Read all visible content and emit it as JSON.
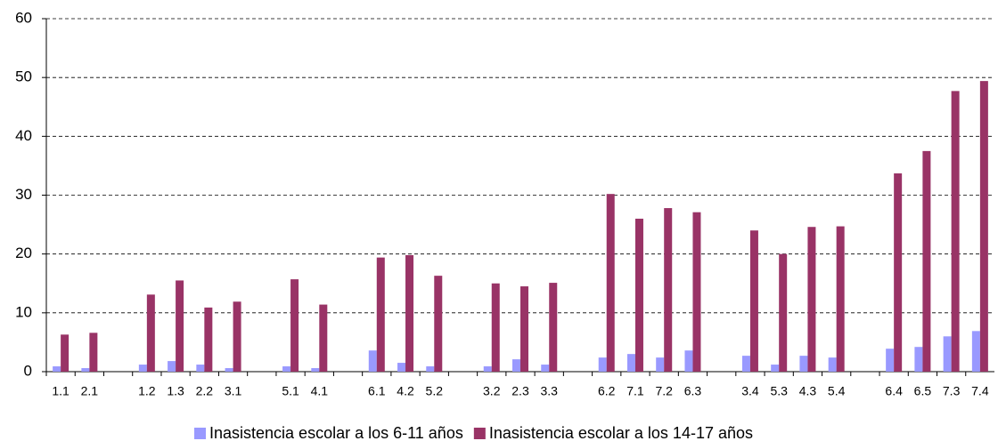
{
  "chart_data": {
    "type": "bar",
    "categories": [
      "1.1",
      "2.1",
      null,
      "1.2",
      "1.3",
      "2.2",
      "3.1",
      null,
      "5.1",
      "4.1",
      null,
      "6.1",
      "4.2",
      "5.2",
      null,
      "3.2",
      "2.3",
      "3.3",
      null,
      "6.2",
      "7.1",
      "7.2",
      "6.3",
      null,
      "3.4",
      "5.3",
      "4.3",
      "5.4",
      null,
      "6.4",
      "6.5",
      "7.3",
      "7.4"
    ],
    "series": [
      {
        "name": "Inasistencia escolar a los 6-11 años",
        "color": "#9999ff",
        "values": [
          0.9,
          0.6,
          null,
          1.2,
          1.8,
          1.2,
          0.6,
          null,
          0.9,
          0.6,
          null,
          3.6,
          1.5,
          0.9,
          null,
          0.9,
          2.1,
          1.2,
          null,
          2.4,
          3.0,
          2.4,
          3.6,
          null,
          2.7,
          1.2,
          2.7,
          2.4,
          null,
          3.9,
          4.2,
          6.0,
          6.9
        ]
      },
      {
        "name": "Inasistencia escolar a los 14-17 años",
        "color": "#993366",
        "values": [
          6.3,
          6.6,
          null,
          13.1,
          15.5,
          10.9,
          11.9,
          null,
          15.7,
          11.4,
          null,
          19.4,
          19.8,
          16.3,
          null,
          15.0,
          14.5,
          15.1,
          null,
          30.2,
          26.0,
          27.8,
          27.1,
          null,
          24.0,
          20.0,
          24.6,
          24.7,
          null,
          33.7,
          37.5,
          47.7,
          49.4
        ]
      }
    ],
    "ylim": [
      0,
      60
    ],
    "yticks": [
      0,
      10,
      20,
      30,
      40,
      50,
      60
    ],
    "grid": true,
    "legend": "bottom"
  }
}
